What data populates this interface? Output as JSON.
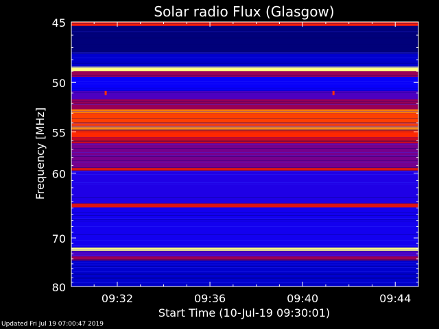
{
  "chart_data": {
    "type": "heatmap",
    "title": "Solar radio Flux (Glasgow)",
    "xlabel": "Start Time (10-Jul-19 09:30:01)",
    "ylabel": "Frequency [MHz]",
    "x_range": [
      "09:30:01",
      "09:45:00"
    ],
    "x_ticks": [
      "09:32",
      "09:36",
      "09:40",
      "09:44"
    ],
    "y_range": [
      45,
      80
    ],
    "y_ticks": [
      45,
      50,
      55,
      60,
      70,
      80
    ],
    "y_scale": "reciprocal",
    "colormap": [
      "#000050",
      "#0000ff",
      "#6000b0",
      "#b00030",
      "#ff2000",
      "#ff8000",
      "#ffff80"
    ],
    "intensity_profile": [
      {
        "freq_from": 45.0,
        "freq_to": 45.3,
        "level": 0.65
      },
      {
        "freq_from": 45.3,
        "freq_to": 47.5,
        "level": 0.04
      },
      {
        "freq_from": 47.5,
        "freq_to": 48.6,
        "level": 0.12
      },
      {
        "freq_from": 48.6,
        "freq_to": 49.0,
        "level": 1.0
      },
      {
        "freq_from": 49.0,
        "freq_to": 49.5,
        "level": 0.45
      },
      {
        "freq_from": 49.5,
        "freq_to": 50.8,
        "level": 0.18
      },
      {
        "freq_from": 50.8,
        "freq_to": 51.6,
        "level": 0.3
      },
      {
        "freq_from": 51.6,
        "freq_to": 52.6,
        "level": 0.45
      },
      {
        "freq_from": 52.6,
        "freq_to": 53.0,
        "level": 0.82
      },
      {
        "freq_from": 53.0,
        "freq_to": 54.4,
        "level": 0.72
      },
      {
        "freq_from": 54.4,
        "freq_to": 54.8,
        "level": 0.85
      },
      {
        "freq_from": 54.8,
        "freq_to": 55.6,
        "level": 0.68
      },
      {
        "freq_from": 55.6,
        "freq_to": 56.3,
        "level": 0.55
      },
      {
        "freq_from": 56.3,
        "freq_to": 59.3,
        "level": 0.38
      },
      {
        "freq_from": 59.3,
        "freq_to": 59.7,
        "level": 0.62
      },
      {
        "freq_from": 59.7,
        "freq_to": 64.3,
        "level": 0.22
      },
      {
        "freq_from": 64.3,
        "freq_to": 64.9,
        "level": 0.6
      },
      {
        "freq_from": 64.9,
        "freq_to": 71.8,
        "level": 0.2
      },
      {
        "freq_from": 71.8,
        "freq_to": 72.4,
        "level": 1.0
      },
      {
        "freq_from": 72.4,
        "freq_to": 73.5,
        "level": 0.3
      },
      {
        "freq_from": 73.5,
        "freq_to": 74.3,
        "level": 0.45
      },
      {
        "freq_from": 74.3,
        "freq_to": 80.0,
        "level": 0.12
      }
    ],
    "bursts": [
      {
        "time": "09:31:30",
        "freq": 51.0
      },
      {
        "time": "09:41:20",
        "freq": 51.0
      }
    ]
  },
  "footer": {
    "updated": "Updated Fri Jul 19 07:00:47 2019"
  }
}
